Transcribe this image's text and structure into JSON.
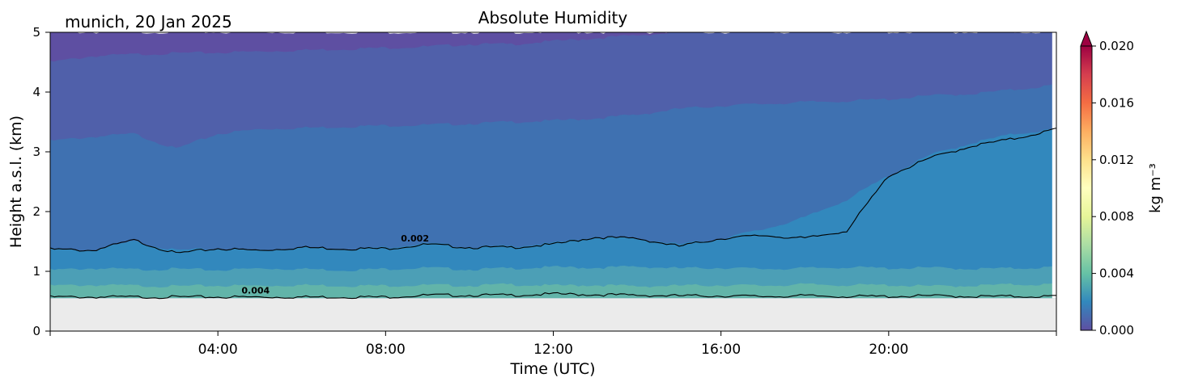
{
  "chart_data": {
    "type": "heatmap",
    "title": "Absolute Humidity",
    "subtitle": "munich, 20 Jan 2025",
    "xlabel": "Time (UTC)",
    "ylabel": "Height a.s.l. (km)",
    "xlim": [
      0,
      24
    ],
    "ylim": [
      0,
      5
    ],
    "x_ticks": [
      {
        "value": 4,
        "label": "04:00"
      },
      {
        "value": 8,
        "label": "08:00"
      },
      {
        "value": 12,
        "label": "12:00"
      },
      {
        "value": 16,
        "label": "16:00"
      },
      {
        "value": 20,
        "label": "20:00"
      }
    ],
    "y_ticks": [
      {
        "value": 0,
        "label": "0"
      },
      {
        "value": 1,
        "label": "1"
      },
      {
        "value": 2,
        "label": "2"
      },
      {
        "value": 3,
        "label": "3"
      },
      {
        "value": 4,
        "label": "4"
      },
      {
        "value": 5,
        "label": "5"
      }
    ],
    "colorbar": {
      "label": "kg m⁻³",
      "min": 0.0,
      "max": 0.02,
      "extend": "max",
      "ticks": [
        {
          "value": 0.0,
          "label": "0.000"
        },
        {
          "value": 0.004,
          "label": "0.004"
        },
        {
          "value": 0.008,
          "label": "0.008"
        },
        {
          "value": 0.012,
          "label": "0.012"
        },
        {
          "value": 0.016,
          "label": "0.016"
        },
        {
          "value": 0.02,
          "label": "0.020"
        }
      ],
      "colormap": "Spectral_r"
    },
    "no_data_below_km": 0.55,
    "no_data_color": "#ebebeb",
    "layers": [
      {
        "value": 0.004,
        "color": "#62b4a9",
        "top_km": [
          0.76,
          0.77,
          0.76,
          0.75,
          0.76,
          0.76,
          0.77,
          0.76,
          0.76,
          0.77,
          0.76,
          0.78,
          0.76,
          0.77,
          0.75,
          0.76,
          0.77,
          0.76,
          0.78,
          0.77,
          0.77,
          0.75,
          0.76,
          0.78,
          0.78
        ]
      },
      {
        "value": 0.0034,
        "color": "#4c9fb6",
        "top_km": [
          1.02,
          1.05,
          1.03,
          1.04,
          1.02,
          1.05,
          1.04,
          1.02,
          1.04,
          1.06,
          1.03,
          1.05,
          1.07,
          1.06,
          1.08,
          1.05,
          1.06,
          1.04,
          1.05,
          1.07,
          1.05,
          1.06,
          1.04,
          1.05,
          1.07
        ]
      },
      {
        "value": 0.0025,
        "color": "#3288bd",
        "top_km": [
          1.38,
          1.35,
          1.5,
          1.35,
          1.38,
          1.36,
          1.4,
          1.38,
          1.4,
          1.47,
          1.41,
          1.42,
          1.47,
          1.58,
          1.55,
          1.45,
          1.55,
          1.7,
          1.9,
          2.2,
          2.6,
          2.95,
          3.15,
          3.3,
          3.38
        ]
      },
      {
        "value": 0.0016,
        "color": "#3f71b1",
        "top_km": [
          3.18,
          3.25,
          3.3,
          3.05,
          3.3,
          3.38,
          3.4,
          3.42,
          3.44,
          3.45,
          3.47,
          3.5,
          3.52,
          3.56,
          3.62,
          3.72,
          3.77,
          3.8,
          3.83,
          3.85,
          3.88,
          3.94,
          3.97,
          4.04,
          4.12
        ]
      },
      {
        "value": 0.001,
        "color": "#5060aa",
        "top_km": [
          4.5,
          4.6,
          4.63,
          4.65,
          4.66,
          4.68,
          4.7,
          4.72,
          4.74,
          4.76,
          4.8,
          4.8,
          4.85,
          4.9,
          4.95,
          5.0,
          5.0,
          5.0,
          5.0,
          5.0,
          5.0,
          5.0,
          5.0,
          5.0,
          5.0
        ]
      },
      {
        "value": 0.0006,
        "color": "#5e4fa2",
        "top_km": [
          5.0,
          5.0,
          5.0,
          5.0,
          5.0,
          5.0,
          5.0,
          5.0,
          5.0,
          5.0,
          5.0,
          5.0,
          5.0,
          5.0,
          5.0,
          5.0,
          5.0,
          5.0,
          5.0,
          5.0,
          5.0,
          5.0,
          5.0,
          5.0,
          5.0
        ]
      }
    ],
    "contours": [
      {
        "level": "0.002",
        "label_at": [
          8.7,
          1.5
        ],
        "line_km": [
          1.37,
          1.35,
          1.52,
          1.3,
          1.38,
          1.35,
          1.4,
          1.38,
          1.38,
          1.45,
          1.4,
          1.4,
          1.45,
          1.57,
          1.55,
          1.42,
          1.55,
          1.6,
          1.55,
          1.68,
          2.6,
          2.9,
          3.1,
          3.22,
          3.38
        ]
      },
      {
        "level": "0.004",
        "label_at": [
          4.9,
          0.63
        ],
        "line_km": [
          0.57,
          0.57,
          0.57,
          0.57,
          0.57,
          0.57,
          0.57,
          0.57,
          0.57,
          0.6,
          0.6,
          0.6,
          0.62,
          0.61,
          0.6,
          0.59,
          0.59,
          0.58,
          0.59,
          0.58,
          0.58,
          0.59,
          0.58,
          0.58,
          0.58
        ]
      }
    ]
  }
}
